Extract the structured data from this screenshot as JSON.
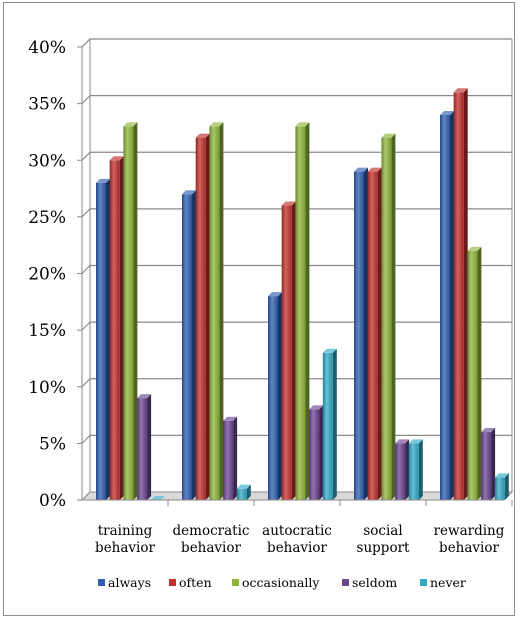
{
  "chart_data": {
    "type": "bar",
    "categories": [
      [
        "training",
        "behavior"
      ],
      [
        "democratic",
        "behavior"
      ],
      [
        "autocratic",
        "behavior"
      ],
      [
        "social",
        "support"
      ],
      [
        "rewarding",
        "behavior"
      ]
    ],
    "series": [
      {
        "name": "always",
        "values": [
          28,
          27,
          18,
          29,
          34
        ]
      },
      {
        "name": "often",
        "values": [
          30,
          32,
          26,
          29,
          36
        ]
      },
      {
        "name": "occasionally",
        "values": [
          33,
          33,
          33,
          32,
          22
        ]
      },
      {
        "name": "seldom",
        "values": [
          9,
          7,
          8,
          5,
          6
        ]
      },
      {
        "name": "never",
        "values": [
          0,
          1,
          13,
          5,
          2
        ]
      }
    ],
    "y_ticks": [
      "0%",
      "5%",
      "10%",
      "15%",
      "20%",
      "25%",
      "30%",
      "35%",
      "40%"
    ],
    "ylim": [
      0,
      40
    ],
    "y_unit": "%",
    "grid": true,
    "legend_position": "bottom",
    "colors": {
      "always": "#2f5fb0",
      "often": "#c0302c",
      "occasionally": "#8db53a",
      "seldom": "#6b4692",
      "never": "#32aac6"
    },
    "title": "",
    "xlabel": "",
    "ylabel": ""
  }
}
